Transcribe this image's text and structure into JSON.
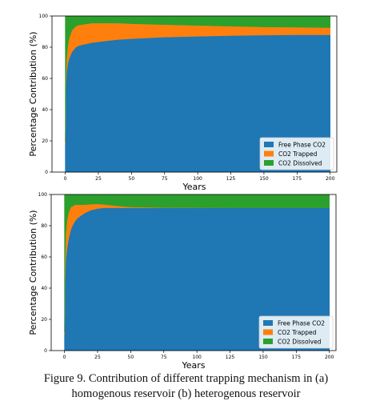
{
  "chart_data": [
    {
      "type": "area",
      "stacked": true,
      "ylabel": "Percentage Contribution (%)",
      "xlabel": "Years",
      "xlim": [
        -10,
        205
      ],
      "ylim": [
        0,
        100
      ],
      "xticks": [
        0,
        25,
        50,
        75,
        100,
        125,
        150,
        175,
        200
      ],
      "yticks": [
        0,
        20,
        40,
        60,
        80,
        100
      ],
      "legend_position": "bottom-right",
      "x": [
        0,
        0.5,
        1,
        2,
        3,
        4,
        5,
        6,
        8,
        10,
        15,
        20,
        25,
        30,
        35,
        40,
        50,
        75,
        100,
        125,
        150,
        175,
        200
      ],
      "series": [
        {
          "name": "Free Phase CO2",
          "color": "#1f77b4",
          "values": [
            18,
            55,
            64,
            70,
            73,
            75,
            77,
            78,
            80,
            81,
            82,
            83,
            83.5,
            84,
            84.5,
            85,
            85.5,
            86.5,
            87,
            87.5,
            87.8,
            88,
            88
          ]
        },
        {
          "name": "CO2 Trapped",
          "color": "#ff7f0e",
          "values": [
            1,
            6,
            9,
            12,
            13,
            13.5,
            13.8,
            13.8,
            13.5,
            13.2,
            12.8,
            12.5,
            12,
            11.6,
            11,
            10.5,
            9.6,
            8,
            7,
            6,
            5.2,
            4.8,
            4.6
          ]
        },
        {
          "name": "CO2 Dissolved",
          "color": "#2ca02c",
          "values": [
            81,
            39,
            27,
            18,
            14,
            11.5,
            9.2,
            8.2,
            6.5,
            5.8,
            5.2,
            4.5,
            4.5,
            4.4,
            4.5,
            4.5,
            4.9,
            5.5,
            6,
            6.5,
            7,
            7.2,
            7.4
          ]
        }
      ]
    },
    {
      "type": "area",
      "stacked": true,
      "ylabel": "Percentage Contribution (%)",
      "xlabel": "Years",
      "xlim": [
        -10,
        205
      ],
      "ylim": [
        0,
        100
      ],
      "xticks": [
        0,
        25,
        50,
        75,
        100,
        125,
        150,
        175,
        200
      ],
      "yticks": [
        0,
        20,
        40,
        60,
        80,
        100
      ],
      "legend_position": "bottom-right",
      "x": [
        0,
        0.5,
        1,
        2,
        3,
        4,
        5,
        6,
        8,
        10,
        15,
        20,
        25,
        30,
        40,
        50,
        75,
        100,
        125,
        150,
        175,
        200
      ],
      "series": [
        {
          "name": "Free Phase CO2",
          "color": "#1f77b4",
          "values": [
            10,
            45,
            58,
            66,
            71,
            75,
            78,
            80,
            83,
            85,
            88,
            90,
            91,
            91.5,
            91.5,
            91.5,
            91.5,
            91.5,
            91.5,
            91.5,
            91.5,
            91.5
          ]
        },
        {
          "name": "CO2 Trapped",
          "color": "#ff7f0e",
          "values": [
            2,
            14,
            17,
            18,
            17,
            15.5,
            14,
            12.5,
            10.5,
            8.5,
            5.5,
            3.8,
            3,
            2.2,
            1.2,
            0.5,
            0.2,
            0.1,
            0,
            0,
            0,
            0
          ]
        },
        {
          "name": "CO2 Dissolved",
          "color": "#2ca02c",
          "values": [
            88,
            41,
            25,
            16,
            12,
            9.5,
            8,
            7.5,
            6.5,
            6.5,
            6.5,
            6.2,
            6,
            6.3,
            7.3,
            8,
            8.3,
            8.4,
            8.5,
            8.5,
            8.5,
            8.5
          ]
        }
      ]
    }
  ],
  "caption": {
    "line1": "Figure 9. Contribution of different trapping mechanism in (a)",
    "line2": "homogenous reservoir (b) heterogenous reservoir"
  }
}
